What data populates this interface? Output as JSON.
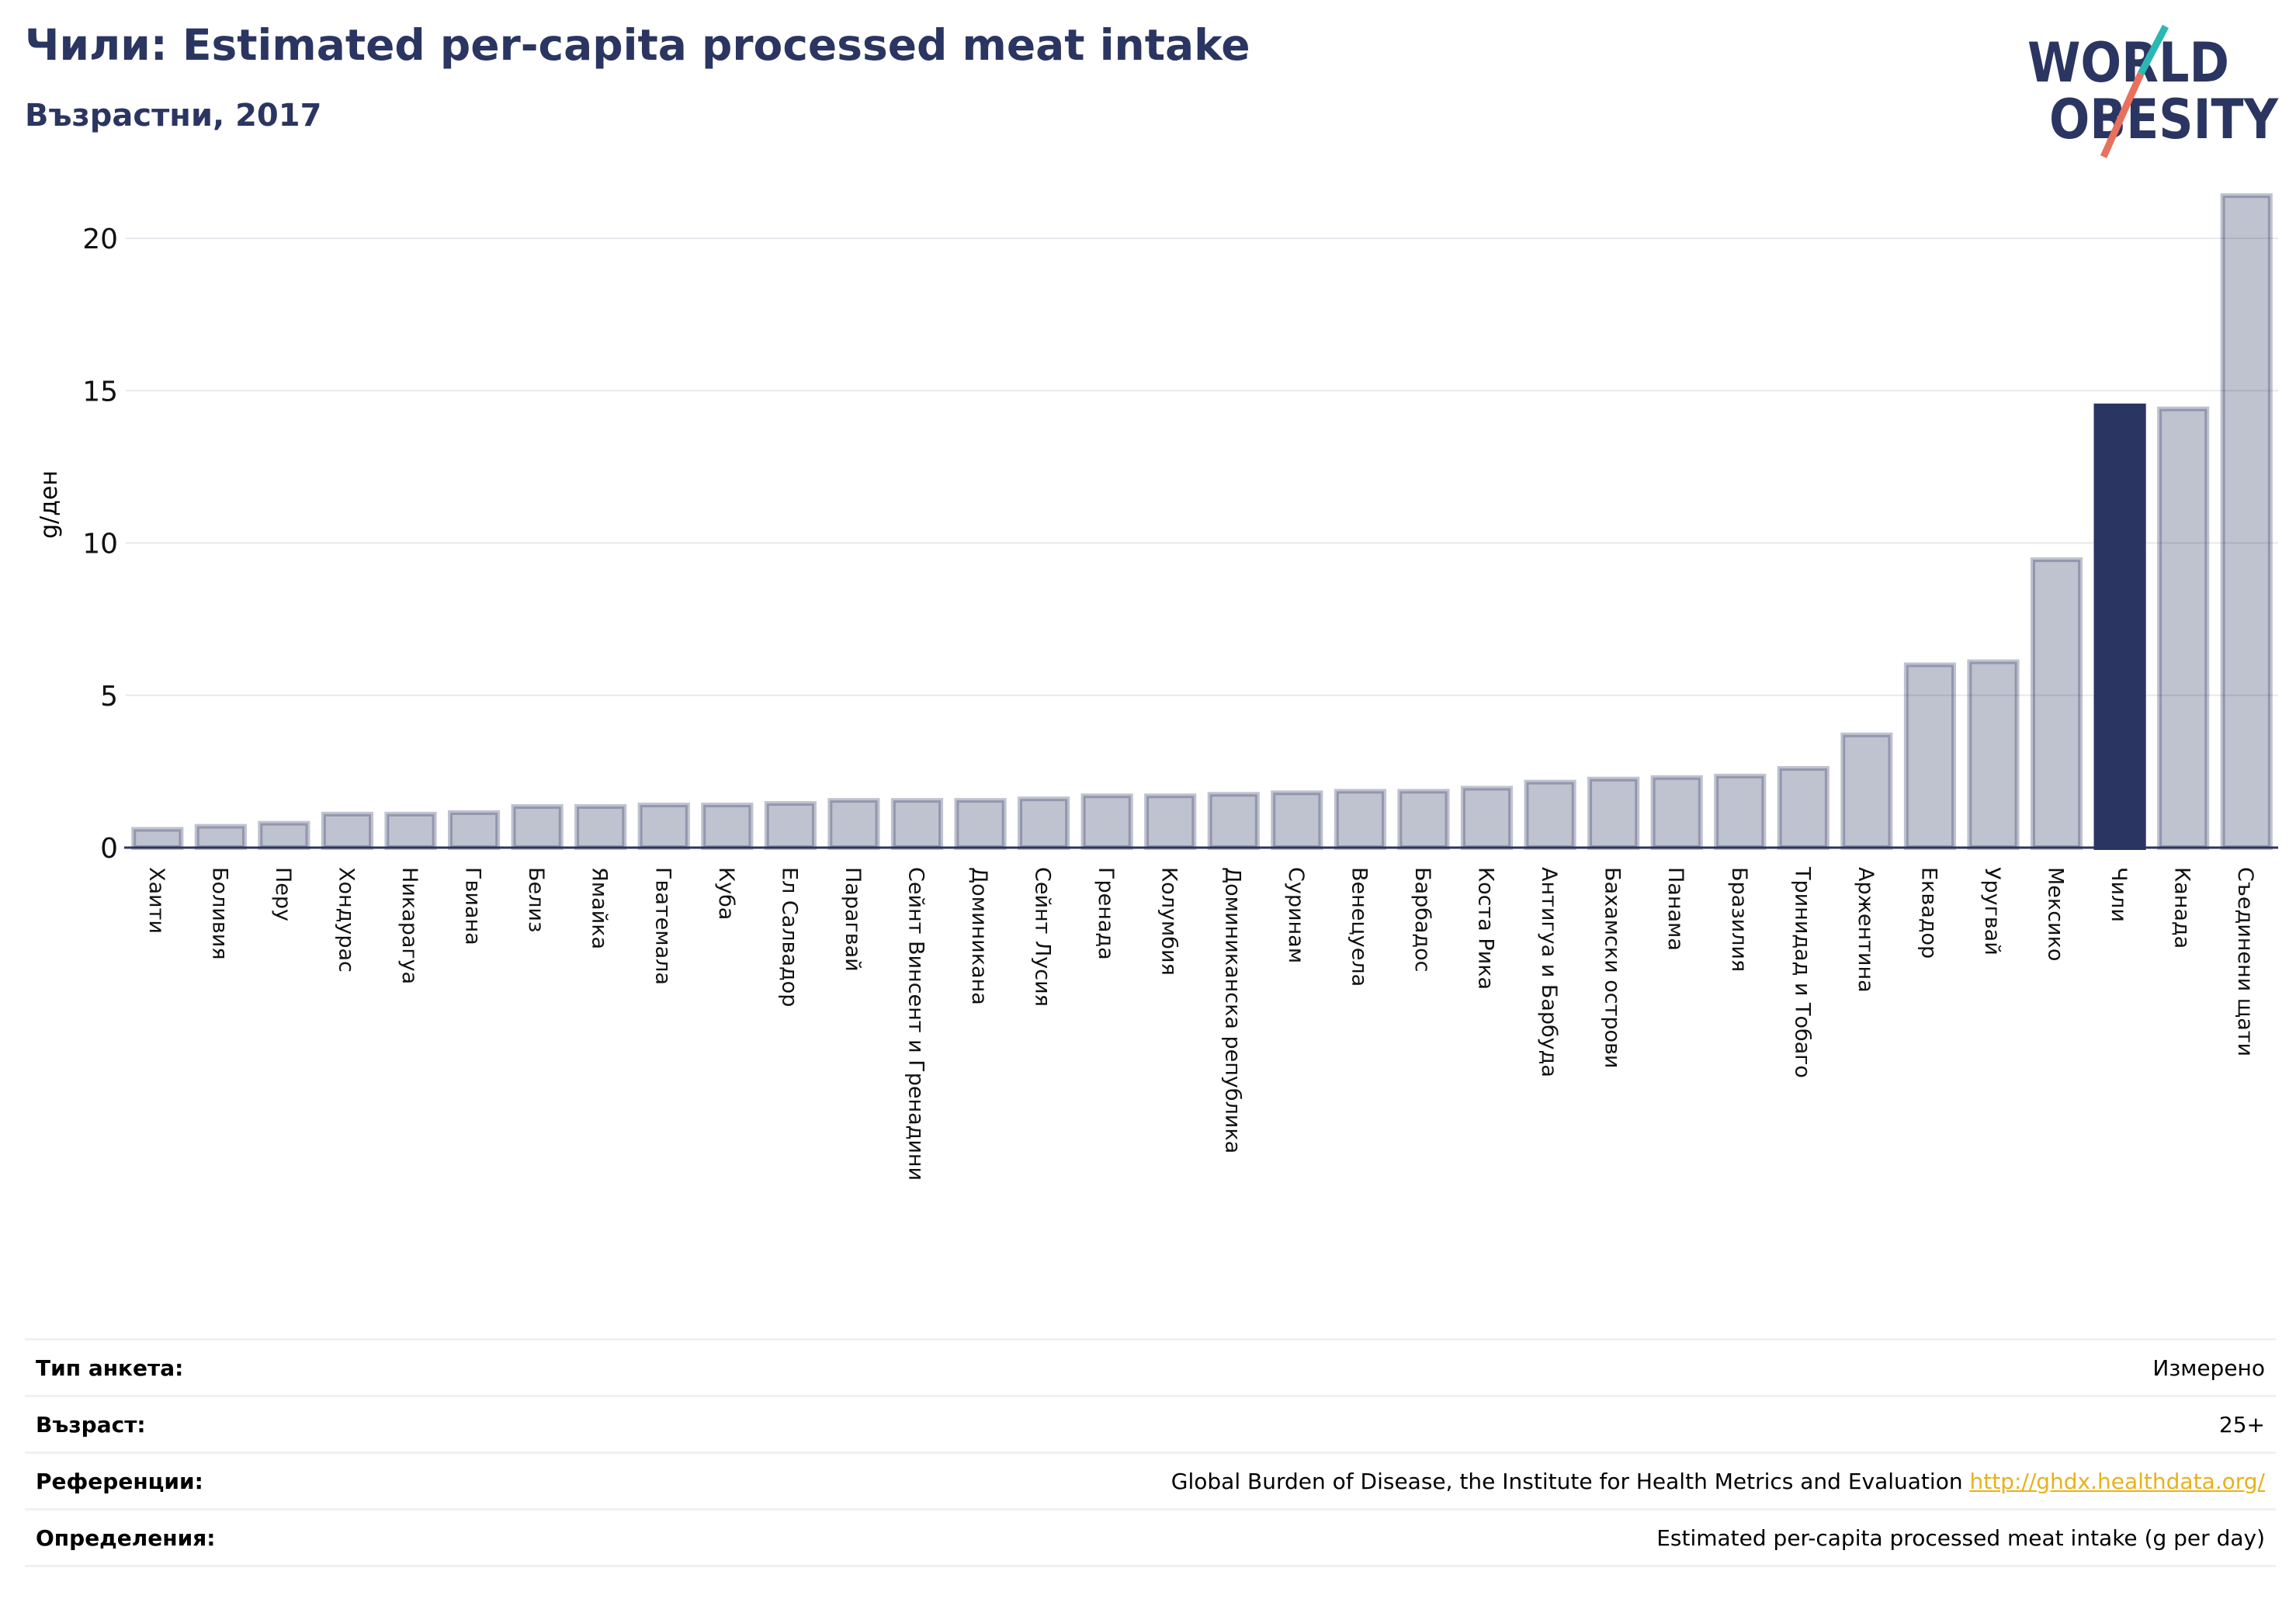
{
  "header": {
    "title": "Чили: Estimated per-capita processed meat intake",
    "subtitle": "Възрастни, 2017"
  },
  "logo": {
    "line1": "WORLD",
    "line2": "OBESITY",
    "colors": {
      "text": "#2b3561",
      "slash_top": "#2bb8b3",
      "slash_bottom": "#e8705d"
    }
  },
  "chart_data": {
    "type": "bar",
    "ylabel": "g/ден",
    "ylim": [
      0,
      22
    ],
    "yticks": [
      0,
      5,
      10,
      15,
      20
    ],
    "grid": true,
    "highlight": "Чили",
    "colors": {
      "bar": "#2b3561",
      "highlight": "#2b3561",
      "grid": "#e6e9ee"
    },
    "categories": [
      "Хаити",
      "Боливия",
      "Перу",
      "Хондурас",
      "Никарагуа",
      "Гвиана",
      "Белиз",
      "Ямайка",
      "Гватемала",
      "Куба",
      "Ел Салвадор",
      "Парагвай",
      "Сейнт Винсент и Гренадини",
      "Доминикана",
      "Сейнт Лусия",
      "Гренада",
      "Колумбия",
      "Доминиканска република",
      "Суринам",
      "Венецуела",
      "Барбадос",
      "Коста Рика",
      "Антигуа и Барбуда",
      "Бахамски острови",
      "Панама",
      "Бразилия",
      "Тринидад и Тобаго",
      "Аржентина",
      "Еквадор",
      "Уругвай",
      "Мексико",
      "Чили",
      "Канада",
      "Съединени щати"
    ],
    "values": [
      0.6,
      0.7,
      0.8,
      1.1,
      1.1,
      1.15,
      1.35,
      1.35,
      1.4,
      1.4,
      1.45,
      1.55,
      1.55,
      1.55,
      1.6,
      1.7,
      1.7,
      1.75,
      1.8,
      1.85,
      1.85,
      1.95,
      2.15,
      2.25,
      2.3,
      2.35,
      2.6,
      3.7,
      6.0,
      6.1,
      9.45,
      14.5,
      14.4,
      21.4
    ]
  },
  "meta": [
    {
      "key": "Тип анкета:",
      "value": "Измерено"
    },
    {
      "key": "Възраст:",
      "value": "25+"
    },
    {
      "key": "Референции:",
      "value": "Global Burden of Disease, the Institute for Health Metrics and Evaluation",
      "link": "http://ghdx.healthdata.org/"
    },
    {
      "key": "Определения:",
      "value": "Estimated per-capita processed meat intake (g per day)"
    }
  ]
}
